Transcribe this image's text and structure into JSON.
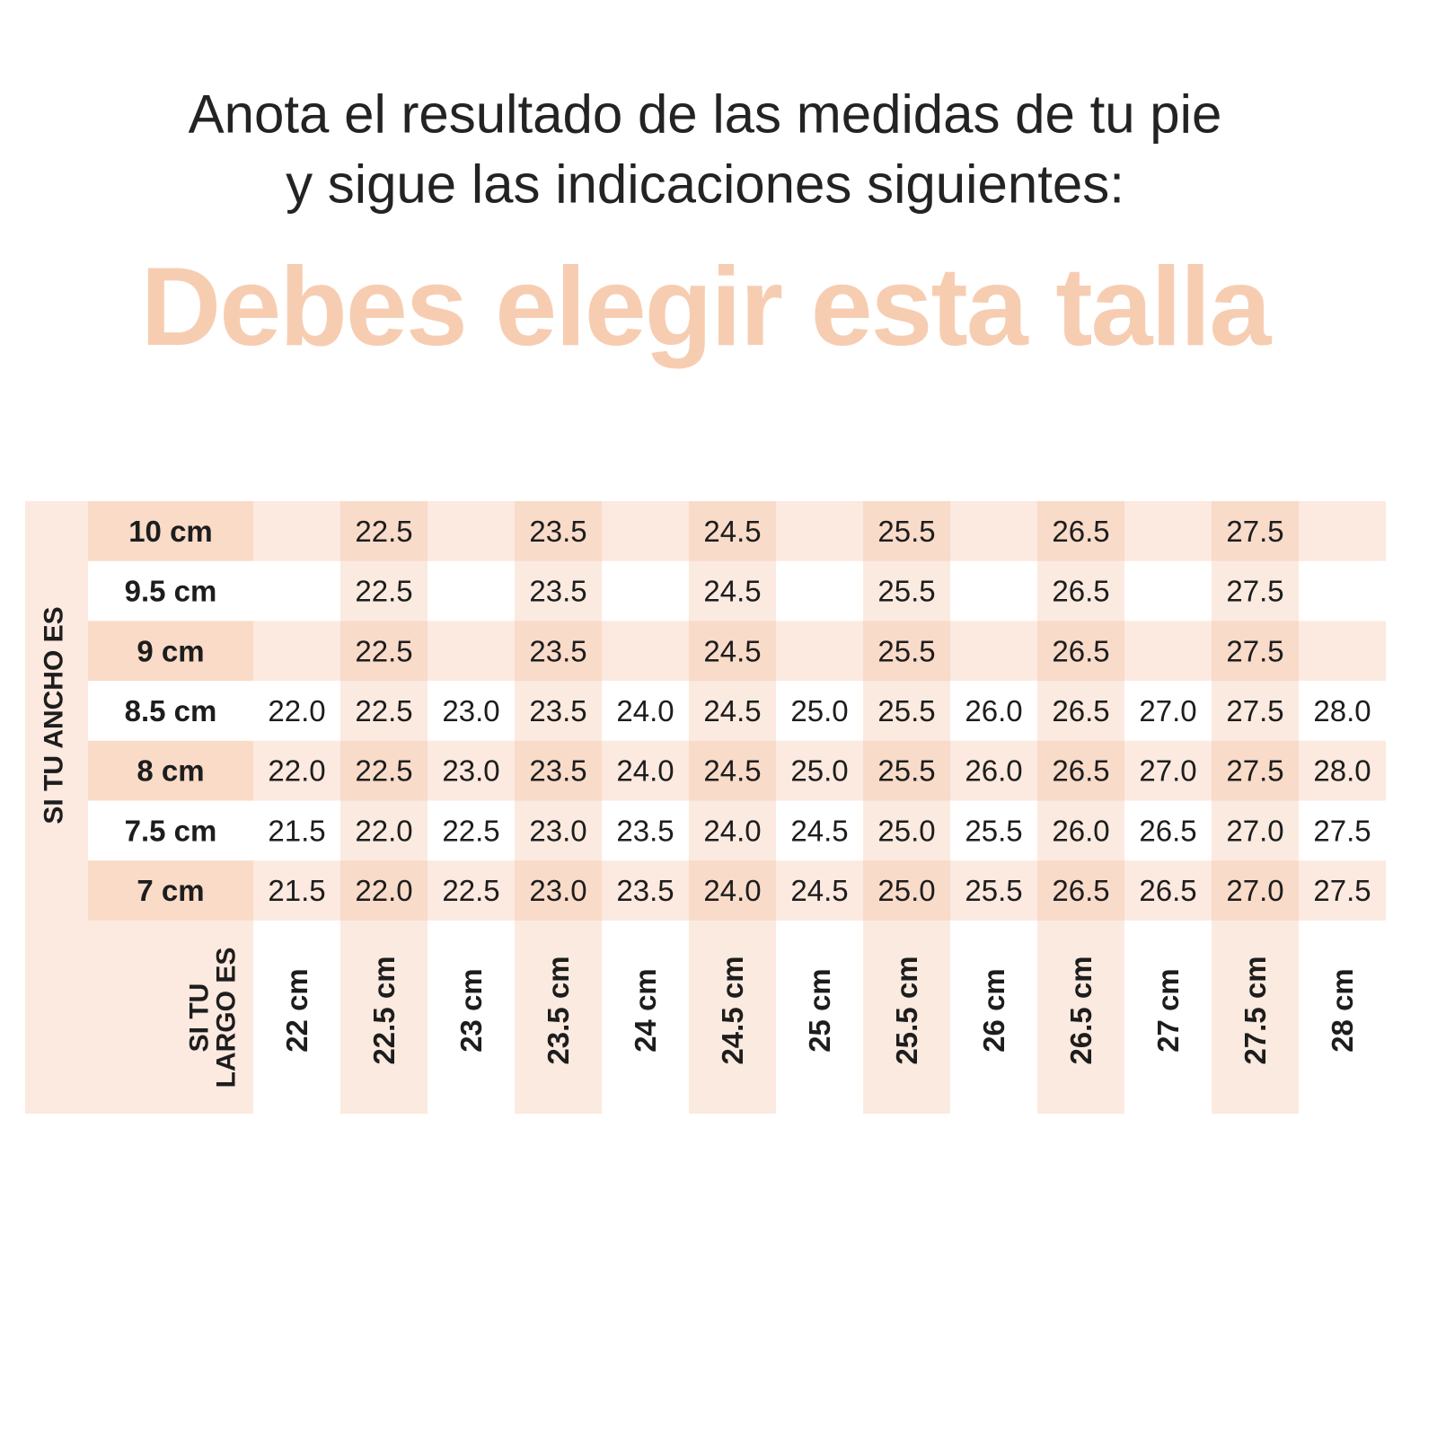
{
  "header": {
    "lines": [
      "Anota el resultado de las medidas de tu pie",
      "y sigue las indicaciones siguientes:"
    ],
    "title": "Debes elegir esta talla"
  },
  "table": {
    "width_label": "SI TU ANCHO ES",
    "length_label": [
      "SI TU",
      "LARGO ES"
    ],
    "row_labels": [
      "10 cm",
      "9.5 cm",
      "9 cm",
      "8.5 cm",
      "8 cm",
      "7.5 cm",
      "7 cm"
    ],
    "column_labels": [
      "22 cm",
      "22.5 cm",
      "23 cm",
      "23.5 cm",
      "24 cm",
      "24.5 cm",
      "25 cm",
      "25.5 cm",
      "26 cm",
      "26.5 cm",
      "27 cm",
      "27.5 cm",
      "28 cm"
    ],
    "rows": [
      [
        null,
        "22.5",
        null,
        "23.5",
        null,
        "24.5",
        null,
        "25.5",
        null,
        "26.5",
        null,
        "27.5",
        null
      ],
      [
        null,
        "22.5",
        null,
        "23.5",
        null,
        "24.5",
        null,
        "25.5",
        null,
        "26.5",
        null,
        "27.5",
        null
      ],
      [
        null,
        "22.5",
        null,
        "23.5",
        null,
        "24.5",
        null,
        "25.5",
        null,
        "26.5",
        null,
        "27.5",
        null
      ],
      [
        "22.0",
        "22.5",
        "23.0",
        "23.5",
        "24.0",
        "24.5",
        "25.0",
        "25.5",
        "26.0",
        "26.5",
        "27.0",
        "27.5",
        "28.0"
      ],
      [
        "22.0",
        "22.5",
        "23.0",
        "23.5",
        "24.0",
        "24.5",
        "25.0",
        "25.5",
        "26.0",
        "26.5",
        "27.0",
        "27.5",
        "28.0"
      ],
      [
        "21.5",
        "22.0",
        "22.5",
        "23.0",
        "23.5",
        "24.0",
        "24.5",
        "25.0",
        "25.5",
        "26.0",
        "26.5",
        "27.0",
        "27.5"
      ],
      [
        "21.5",
        "22.0",
        "22.5",
        "23.0",
        "23.5",
        "24.0",
        "24.5",
        "25.0",
        "25.5",
        "26.5",
        "26.5",
        "27.0",
        "27.5"
      ]
    ]
  }
}
